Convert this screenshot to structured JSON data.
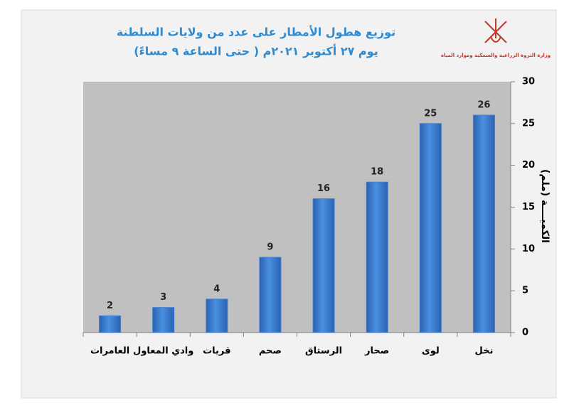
{
  "chart_data": {
    "type": "bar",
    "title": "توزيع هطول الأمطار على عدد من ولايات السلطنة",
    "subtitle": "يوم ٢٧ أكتوبر ٢٠٢١م ( حتى الساعة ٩ مساءً)",
    "logo_caption": "وزارة الثروة الزراعية والسمكية وموارد المياه",
    "ylabel": "الكميــــة (ملم)",
    "categories": [
      "العامرات",
      "وادي المعاول",
      "قريات",
      "صحم",
      "الرستاق",
      "صحار",
      "لوى",
      "نخل"
    ],
    "values": [
      2,
      3,
      4,
      9,
      16,
      18,
      25,
      26
    ],
    "color": "#3b7fd4",
    "ylim": [
      0,
      30
    ],
    "yticks": [
      0,
      5,
      10,
      15,
      20,
      25,
      30
    ],
    "y_axis_side": "right",
    "grid": false
  }
}
